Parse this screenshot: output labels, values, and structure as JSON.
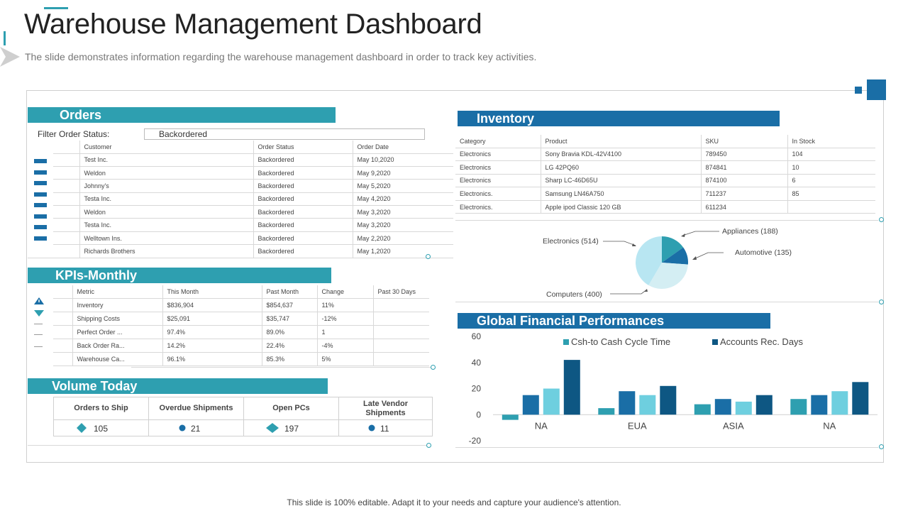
{
  "header": {
    "title": "Warehouse Management Dashboard",
    "subtitle": "The slide demonstrates information regarding the warehouse management dashboard in order to track key activities."
  },
  "footer": {
    "text": "This slide is 100% editable. Adapt it to your needs and capture your audience's attention."
  },
  "colors": {
    "teal": "#2e9fb0",
    "blue": "#1a6ea6",
    "light_blue": "#6ecfdf",
    "pale_blue": "#d4eef3",
    "dark_blue": "#0e5783"
  },
  "orders": {
    "title": "Orders",
    "filter_label": "Filter Order Status:",
    "filter_value": "Backordered",
    "columns": [
      "Customer",
      "Order Status",
      "Order Date"
    ],
    "rows": [
      [
        "Test Inc.",
        "Backordered",
        "May 10,2020"
      ],
      [
        "Weldon",
        "Backordered",
        "May 9,2020"
      ],
      [
        "Johnny's",
        "Backordered",
        "May 5,2020"
      ],
      [
        "Testa Inc.",
        "Backordered",
        "May 4,2020"
      ],
      [
        "Weldon",
        "Backordered",
        "May 3,2020"
      ],
      [
        "Testa Inc.",
        "Backordered",
        "May 3,2020"
      ],
      [
        "Welltown Ins.",
        "Backordered",
        "May 2,2020"
      ],
      [
        "Richards Brothers",
        "Backordered",
        "May 1,2020"
      ]
    ]
  },
  "kpis": {
    "title": "KPIs-Monthly",
    "columns": [
      "Metric",
      "This Month",
      "Past Month",
      "Change",
      "Past 30 Days"
    ],
    "rows": [
      [
        "Inventory",
        "$836,904",
        "$854,637",
        "11%",
        ""
      ],
      [
        "Shipping Costs",
        "$25,091",
        "$35,747",
        "-12%",
        ""
      ],
      [
        "Perfect Order ...",
        "97.4%",
        "89.0%",
        "1",
        ""
      ],
      [
        "Back Order Ra...",
        "14.2%",
        "22.4%",
        "-4%",
        ""
      ],
      [
        "Warehouse Ca...",
        "96.1%",
        "85.3%",
        "5%",
        ""
      ]
    ],
    "indicator_icons": [
      "warning-triangle-icon",
      "down-triangle-icon",
      "dash-icon",
      "dash-icon",
      "dash-icon"
    ]
  },
  "volume": {
    "title": "Volume Today",
    "columns": [
      {
        "label": "Orders to Ship",
        "value": "105",
        "icon": "diamond-icon"
      },
      {
        "label": "Overdue Shipments",
        "value": "21",
        "icon": "dot-icon"
      },
      {
        "label": "Open PCs",
        "value": "197",
        "icon": "diamond-icon"
      },
      {
        "label": "Late Vendor Shipments",
        "value": "11",
        "icon": "dot-icon"
      }
    ]
  },
  "inventory": {
    "title": "Inventory",
    "columns": [
      "Category",
      "Product",
      "SKU",
      "In Stock"
    ],
    "rows": [
      [
        "Electronics",
        "Sony Bravia KDL-42V4100",
        "789450",
        "104"
      ],
      [
        "Electronics",
        "LG 42PQ60",
        "874841",
        "10"
      ],
      [
        "Electronics",
        "Sharp LC-46D65U",
        "874100",
        "6"
      ],
      [
        "Electronics.",
        "Samsung LN46A750",
        "711237",
        "85"
      ],
      [
        "Electronics.",
        "Apple ipod Classic 120 GB",
        "611234",
        ""
      ]
    ]
  },
  "chart_data": [
    {
      "type": "pie",
      "labels": [
        "Appliances (188)",
        "Automotive (135)",
        "Computers (400)",
        "Electronics (514)"
      ],
      "values": [
        188,
        135,
        400,
        514
      ],
      "colors": [
        "#2e9fb0",
        "#1a6ea6",
        "#d4eef3",
        "#b8e6f2"
      ]
    },
    {
      "type": "bar",
      "title": "Global Financial Performances",
      "categories": [
        "NA",
        "EUA",
        "ASIA",
        "NA"
      ],
      "series": [
        {
          "name": "Csh-to Cash Cycle Time",
          "values": [
            -4,
            5,
            8,
            12
          ],
          "color": "#2e9fb0"
        },
        {
          "values": [
            15,
            18,
            12,
            15
          ],
          "color": "#1a6ea6"
        },
        {
          "values": [
            20,
            15,
            10,
            18
          ],
          "color": "#6ecfdf"
        },
        {
          "name": "Accounts Rec. Days",
          "values": [
            42,
            22,
            15,
            25
          ],
          "color": "#0e5783"
        }
      ],
      "ylim": [
        -20,
        60
      ],
      "yticks": [
        "60",
        "40",
        "20",
        "0",
        "-20"
      ],
      "legend": "top"
    }
  ]
}
